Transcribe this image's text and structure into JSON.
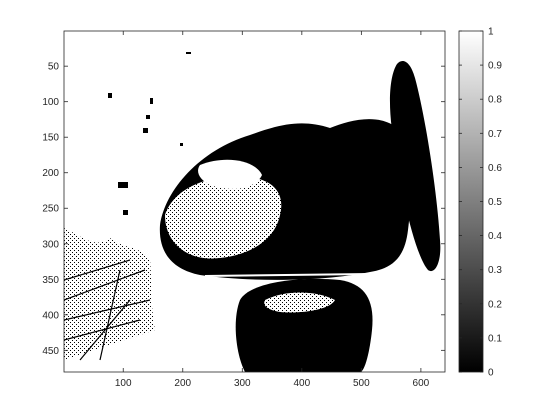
{
  "chart_data": {
    "type": "heatmap",
    "title": "",
    "xlabel": "",
    "ylabel": "",
    "image": {
      "xlim": [
        0.5,
        640.5
      ],
      "ylim": [
        0.5,
        480.5
      ],
      "y_direction": "reverse",
      "x_ticks": [
        100,
        200,
        300,
        400,
        500,
        600
      ],
      "y_ticks": [
        50,
        100,
        150,
        200,
        250,
        300,
        350,
        400,
        450
      ],
      "description_of_values": "binary mask image with values 0 (black) and 1 (white)"
    },
    "colorbar": {
      "colormap": "gray",
      "clim": [
        0,
        1
      ],
      "ticks": [
        0,
        0.1,
        0.2,
        0.3,
        0.4,
        0.5,
        0.6,
        0.7,
        0.8,
        0.9,
        1
      ],
      "tick_labels": [
        "0",
        "0.1",
        "0.2",
        "0.3",
        "0.4",
        "0.5",
        "0.6",
        "0.7",
        "0.8",
        "0.9",
        "1"
      ]
    },
    "colors": {
      "low": "#000000",
      "high": "#ffffff",
      "axis": "#262626"
    }
  }
}
